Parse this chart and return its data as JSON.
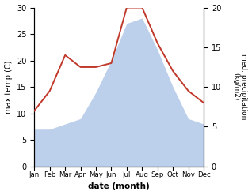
{
  "months": [
    "Jan",
    "Feb",
    "Mar",
    "Apr",
    "May",
    "Jun",
    "Jul",
    "Aug",
    "Sep",
    "Oct",
    "Nov",
    "Dec"
  ],
  "month_indices": [
    0,
    1,
    2,
    3,
    4,
    5,
    6,
    7,
    8,
    9,
    10,
    11
  ],
  "temperature": [
    7,
    7,
    8,
    9,
    14,
    20,
    27,
    28,
    22,
    15,
    9,
    8
  ],
  "precipitation": [
    7.0,
    9.5,
    14.0,
    12.5,
    12.5,
    13.0,
    20.0,
    20.0,
    15.5,
    12.0,
    9.5,
    8.0
  ],
  "precip_color": "#c0392b",
  "temp_fill_color": "#bdd0eb",
  "ylim_temp": [
    0,
    30
  ],
  "ylim_precip": [
    0,
    20
  ],
  "xlabel": "date (month)",
  "ylabel_left": "max temp (C)",
  "ylabel_right": "med. precipitation\n(kg/m2)",
  "yticks_left": [
    0,
    5,
    10,
    15,
    20,
    25,
    30
  ],
  "yticks_right": [
    0,
    5,
    10,
    15,
    20
  ],
  "bg_color": "#ffffff"
}
